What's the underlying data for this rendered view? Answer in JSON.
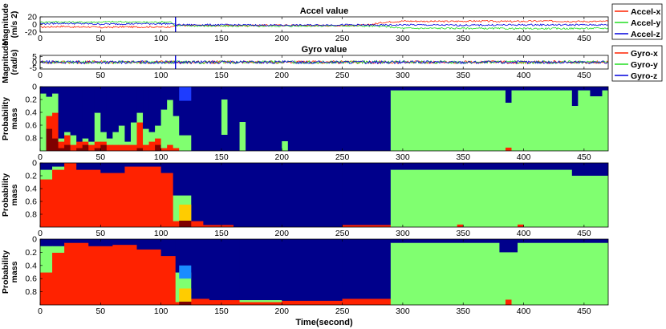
{
  "colors": {
    "red": "#ff2200",
    "green": "#80ff70",
    "navy": "#00008b",
    "darkred": "#7f0000",
    "blue": "#1e3cff",
    "lightblue": "#1a8cff",
    "yellow": "#ffcc00",
    "grey": "#9a9a9a",
    "black": "#000000"
  },
  "chart_data": [
    {
      "id": "accel",
      "type": "line",
      "title": "Accel value",
      "ylabel_lines": [
        "Magnitude",
        "(m/s 2)"
      ],
      "xlim": [
        0,
        470
      ],
      "ylim": [
        -20,
        20
      ],
      "yticks": [
        20,
        0,
        -20
      ],
      "ytick_labels": [
        "20",
        "0",
        "-20"
      ],
      "xticks": [
        0,
        50,
        100,
        150,
        200,
        250,
        300,
        350,
        400,
        450
      ],
      "legend": {
        "position": "right",
        "entries": [
          "Accel-x",
          "Accel-y",
          "Accel-z"
        ],
        "colors": [
          "#ff2200",
          "#22dd22",
          "#0000dd"
        ]
      },
      "series": [
        {
          "name": "Accel-x",
          "segments": [
            {
              "x": [
                0,
                2,
                10,
                20,
                30,
                40,
                50,
                60,
                70,
                80,
                90,
                100,
                108
              ],
              "y": [
                -6,
                -7,
                -6,
                -5,
                -7,
                -6,
                -8,
                -7,
                -6,
                -7,
                -6,
                -7,
                -6
              ]
            },
            {
              "x": [
                112,
                130,
                160,
                200,
                240,
                270,
                285,
                300,
                330,
                360,
                390,
                420,
                450,
                470
              ],
              "y": [
                -2,
                -3,
                -3,
                -2,
                -3,
                -2,
                6,
                9,
                8,
                9,
                8,
                9,
                8,
                8
              ]
            }
          ]
        },
        {
          "name": "Accel-y",
          "segments": [
            {
              "x": [
                0,
                10,
                30,
                60,
                90,
                108
              ],
              "y": [
                6,
                7,
                6,
                7,
                6,
                7
              ]
            },
            {
              "x": [
                112,
                150,
                200,
                250,
                285,
                300,
                350,
                400,
                470
              ],
              "y": [
                -3,
                -4,
                -4,
                -3,
                -5,
                -10,
                -10,
                -11,
                -10
              ]
            }
          ]
        },
        {
          "name": "Accel-z",
          "segments": [
            {
              "x": [
                0,
                20,
                50,
                80,
                108
              ],
              "y": [
                2,
                3,
                1,
                2,
                2
              ]
            },
            {
              "x": [
                112,
                150,
                200,
                250,
                285,
                300,
                350,
                400,
                470
              ],
              "y": [
                -1,
                -1,
                -2,
                -1,
                -2,
                -1,
                -2,
                -1,
                -1
              ]
            }
          ]
        }
      ],
      "spike_x": 112
    },
    {
      "id": "gyro",
      "type": "line",
      "title": "Gyro value",
      "ylabel_lines": [
        "Magnitude",
        "(rad/s)"
      ],
      "xlim": [
        0,
        470
      ],
      "ylim": [
        -6,
        6
      ],
      "yticks": [
        5,
        0,
        -5
      ],
      "ytick_labels": [
        "5",
        "0",
        "-5"
      ],
      "xticks": [
        0,
        50,
        100,
        150,
        200,
        250,
        300,
        350,
        400,
        450
      ],
      "legend": {
        "position": "right",
        "entries": [
          "Gyro-x",
          "Gyro-y",
          "Gyro-z"
        ],
        "colors": [
          "#ff2200",
          "#22dd22",
          "#0000dd"
        ]
      },
      "series": [
        {
          "name": "Gyro-x",
          "x": [
            0,
            470
          ],
          "y": [
            0,
            0
          ]
        },
        {
          "name": "Gyro-y",
          "x": [
            0,
            470
          ],
          "y": [
            0,
            0
          ]
        },
        {
          "name": "Gyro-z",
          "x": [
            0,
            470
          ],
          "y": [
            0,
            0
          ]
        }
      ],
      "spike_x": 112
    },
    {
      "id": "prob1",
      "type": "area",
      "stacked": true,
      "ylabel_lines": [
        "Probability",
        "mass"
      ],
      "xlim": [
        0,
        470
      ],
      "ylim": [
        1,
        0
      ],
      "yticks": [
        0,
        0.2,
        0.4,
        0.6,
        0.8
      ],
      "ytick_labels": [
        "0",
        "0.2",
        "0.4",
        "0.6",
        "0.8"
      ],
      "xticks": [
        0,
        50,
        100,
        150,
        200,
        250,
        300,
        350,
        400,
        450
      ],
      "xtick_labels": [
        "0",
        "50",
        "100",
        "150",
        "200",
        "250",
        "300",
        "350",
        "400",
        "450"
      ],
      "layer_order": [
        "darkred",
        "red",
        "green",
        "navy"
      ],
      "segments": [
        {
          "x0": 0,
          "x1": 5,
          "darkred": 0,
          "red": 0,
          "green": 0.9,
          "navy": 0.1
        },
        {
          "x0": 5,
          "x1": 10,
          "darkred": 0.35,
          "red": 0.2,
          "green": 0.3,
          "navy": 0.15
        },
        {
          "x0": 10,
          "x1": 15,
          "darkred": 0.2,
          "red": 0.4,
          "green": 0.3,
          "navy": 0.1
        },
        {
          "x0": 15,
          "x1": 20,
          "darkred": 0.05,
          "red": 0.1,
          "green": 0.05,
          "navy": 0.8
        },
        {
          "x0": 20,
          "x1": 25,
          "darkred": 0.1,
          "red": 0.15,
          "green": 0.05,
          "navy": 0.7
        },
        {
          "x0": 25,
          "x1": 30,
          "darkred": 0,
          "red": 0.1,
          "green": 0.15,
          "navy": 0.75
        },
        {
          "x0": 30,
          "x1": 35,
          "darkred": 0.05,
          "red": 0.1,
          "green": 0,
          "navy": 0.85
        },
        {
          "x0": 35,
          "x1": 40,
          "darkred": 0.1,
          "red": 0.05,
          "green": 0.05,
          "navy": 0.8
        },
        {
          "x0": 40,
          "x1": 45,
          "darkred": 0,
          "red": 0.1,
          "green": 0.05,
          "navy": 0.85
        },
        {
          "x0": 45,
          "x1": 50,
          "darkred": 0.05,
          "red": 0.1,
          "green": 0.45,
          "navy": 0.4
        },
        {
          "x0": 50,
          "x1": 55,
          "darkred": 0.1,
          "red": 0.05,
          "green": 0.15,
          "navy": 0.7
        },
        {
          "x0": 55,
          "x1": 60,
          "darkred": 0,
          "red": 0.1,
          "green": 0.1,
          "navy": 0.8
        },
        {
          "x0": 60,
          "x1": 65,
          "darkred": 0,
          "red": 0.1,
          "green": 0.2,
          "navy": 0.7
        },
        {
          "x0": 65,
          "x1": 70,
          "darkred": 0,
          "red": 0.1,
          "green": 0.3,
          "navy": 0.6
        },
        {
          "x0": 70,
          "x1": 75,
          "darkred": 0,
          "red": 0.1,
          "green": 0.05,
          "navy": 0.85
        },
        {
          "x0": 75,
          "x1": 80,
          "darkred": 0,
          "red": 0.1,
          "green": 0.35,
          "navy": 0.55
        },
        {
          "x0": 80,
          "x1": 85,
          "darkred": 0.05,
          "red": 0.4,
          "green": 0.15,
          "navy": 0.4
        },
        {
          "x0": 85,
          "x1": 90,
          "darkred": 0,
          "red": 0.1,
          "green": 0.25,
          "navy": 0.65
        },
        {
          "x0": 90,
          "x1": 95,
          "darkred": 0,
          "red": 0.15,
          "green": 0.15,
          "navy": 0.7
        },
        {
          "x0": 95,
          "x1": 100,
          "darkred": 0.1,
          "red": 0.1,
          "green": 0.2,
          "navy": 0.6
        },
        {
          "x0": 100,
          "x1": 105,
          "darkred": 0,
          "red": 0.05,
          "green": 0.6,
          "navy": 0.35
        },
        {
          "x0": 105,
          "x1": 110,
          "darkred": 0,
          "red": 0.1,
          "green": 0.7,
          "navy": 0.2
        },
        {
          "x0": 110,
          "x1": 115,
          "darkred": 0,
          "red": 0.05,
          "green": 0.5,
          "navy": 0.45
        },
        {
          "x0": 115,
          "x1": 125,
          "darkred": 0,
          "red": 0,
          "green": 0.25,
          "navy": 0.75
        },
        {
          "x0": 125,
          "x1": 290,
          "darkred": 0,
          "red": 0,
          "green": 0,
          "navy": 1
        },
        {
          "x0": 290,
          "x1": 470,
          "darkred": 0,
          "red": 0,
          "green": 0.95,
          "navy": 0.05
        }
      ],
      "overlays": [
        {
          "x0": 115,
          "x1": 125,
          "y0": 0,
          "y1": 0.22,
          "color": "blue"
        },
        {
          "x0": 150,
          "x1": 155,
          "y0": 0.2,
          "y1": 0.75,
          "color": "green"
        },
        {
          "x0": 165,
          "x1": 170,
          "y0": 0.55,
          "y1": 1,
          "color": "green"
        },
        {
          "x0": 200,
          "x1": 205,
          "y0": 0.85,
          "y1": 1,
          "color": "green"
        },
        {
          "x0": 385,
          "x1": 390,
          "y0": 0,
          "y1": 0.25,
          "color": "navy"
        },
        {
          "x0": 440,
          "x1": 445,
          "y0": 0,
          "y1": 0.3,
          "color": "navy"
        },
        {
          "x0": 455,
          "x1": 465,
          "y0": 0,
          "y1": 0.15,
          "color": "navy"
        },
        {
          "x0": 385,
          "x1": 390,
          "y0": 0.95,
          "y1": 1,
          "color": "red"
        }
      ]
    },
    {
      "id": "prob2",
      "type": "area",
      "stacked": true,
      "ylabel_lines": [
        "Probability",
        "mass"
      ],
      "xlim": [
        0,
        470
      ],
      "ylim": [
        1,
        0
      ],
      "yticks": [
        0,
        0.2,
        0.4,
        0.6,
        0.8
      ],
      "ytick_labels": [
        "0",
        "0.2",
        "0.4",
        "0.6",
        "0.8"
      ],
      "xticks": [
        0,
        50,
        100,
        150,
        200,
        250,
        300,
        350,
        400,
        450
      ],
      "xtick_labels": [
        "0",
        "50",
        "100",
        "150",
        "200",
        "250",
        "300",
        "350",
        "400",
        "450"
      ],
      "layer_order": [
        "red",
        "green",
        "navy"
      ],
      "segments": [
        {
          "x0": 0,
          "x1": 10,
          "red": 0.75,
          "green": 0.15,
          "navy": 0.1
        },
        {
          "x0": 10,
          "x1": 20,
          "red": 0.9,
          "green": 0.05,
          "navy": 0.05
        },
        {
          "x0": 20,
          "x1": 30,
          "red": 1,
          "green": 0,
          "navy": 0
        },
        {
          "x0": 30,
          "x1": 50,
          "red": 0.9,
          "green": 0,
          "navy": 0.1
        },
        {
          "x0": 50,
          "x1": 70,
          "red": 0.85,
          "green": 0,
          "navy": 0.15
        },
        {
          "x0": 70,
          "x1": 100,
          "red": 0.95,
          "green": 0,
          "navy": 0.05
        },
        {
          "x0": 100,
          "x1": 110,
          "red": 0.85,
          "green": 0,
          "navy": 0.15
        },
        {
          "x0": 110,
          "x1": 125,
          "red": 0.1,
          "green": 0.4,
          "navy": 0.5
        },
        {
          "x0": 125,
          "x1": 135,
          "red": 0.1,
          "green": 0,
          "navy": 0.9
        },
        {
          "x0": 135,
          "x1": 160,
          "red": 0.04,
          "green": 0,
          "navy": 0.96
        },
        {
          "x0": 160,
          "x1": 250,
          "red": 0,
          "green": 0,
          "navy": 1
        },
        {
          "x0": 250,
          "x1": 290,
          "red": 0.04,
          "green": 0,
          "navy": 0.96
        },
        {
          "x0": 290,
          "x1": 470,
          "red": 0,
          "green": 0.9,
          "navy": 0.1
        }
      ],
      "overlays": [
        {
          "x0": 115,
          "x1": 125,
          "y0": 0.65,
          "y1": 0.9,
          "color": "yellow"
        },
        {
          "x0": 115,
          "x1": 125,
          "y0": 0.9,
          "y1": 1,
          "color": "darkred"
        },
        {
          "x0": 380,
          "x1": 395,
          "y0": 0,
          "y1": 0.1,
          "color": "navy"
        },
        {
          "x0": 440,
          "x1": 470,
          "y0": 0,
          "y1": 0.2,
          "color": "navy"
        },
        {
          "x0": 395,
          "x1": 400,
          "y0": 0.96,
          "y1": 1,
          "color": "red"
        },
        {
          "x0": 345,
          "x1": 350,
          "y0": 0.96,
          "y1": 1,
          "color": "red"
        }
      ]
    },
    {
      "id": "prob3",
      "type": "area",
      "stacked": true,
      "ylabel_lines": [
        "Probability",
        "mass"
      ],
      "xlim": [
        0,
        470
      ],
      "ylim": [
        1,
        0
      ],
      "yticks": [
        0,
        0.2,
        0.4,
        0.6,
        0.8
      ],
      "ytick_labels": [
        "0",
        "0.2",
        "0.4",
        "0.6",
        "0.8"
      ],
      "xticks": [
        0,
        50,
        100,
        150,
        200,
        250,
        300,
        350,
        400,
        450
      ],
      "xtick_labels": [
        "0",
        "50",
        "100",
        "150",
        "200",
        "250",
        "300",
        "350",
        "400",
        "450"
      ],
      "xlabel": "Time(second)",
      "layer_order": [
        "red",
        "green",
        "navy"
      ],
      "segments": [
        {
          "x0": 0,
          "x1": 10,
          "red": 0.5,
          "green": 0.4,
          "navy": 0.1
        },
        {
          "x0": 10,
          "x1": 20,
          "red": 0.8,
          "green": 0.1,
          "navy": 0.1
        },
        {
          "x0": 20,
          "x1": 40,
          "red": 0.95,
          "green": 0,
          "navy": 0.05
        },
        {
          "x0": 40,
          "x1": 60,
          "red": 0.9,
          "green": 0,
          "navy": 0.1
        },
        {
          "x0": 60,
          "x1": 80,
          "red": 0.92,
          "green": 0,
          "navy": 0.08
        },
        {
          "x0": 80,
          "x1": 100,
          "red": 0.85,
          "green": 0,
          "navy": 0.15
        },
        {
          "x0": 100,
          "x1": 112,
          "red": 0.75,
          "green": 0,
          "navy": 0.25
        },
        {
          "x0": 112,
          "x1": 125,
          "red": 0.05,
          "green": 0.45,
          "navy": 0.5
        },
        {
          "x0": 125,
          "x1": 140,
          "red": 0.1,
          "green": 0,
          "navy": 0.9
        },
        {
          "x0": 140,
          "x1": 165,
          "red": 0.08,
          "green": 0,
          "navy": 0.92
        },
        {
          "x0": 165,
          "x1": 200,
          "red": 0.05,
          "green": 0.03,
          "navy": 0.92
        },
        {
          "x0": 200,
          "x1": 250,
          "red": 0.07,
          "green": 0,
          "navy": 0.93
        },
        {
          "x0": 250,
          "x1": 290,
          "red": 0.1,
          "green": 0,
          "navy": 0.9
        },
        {
          "x0": 290,
          "x1": 470,
          "red": 0,
          "green": 0.95,
          "navy": 0.05
        }
      ],
      "overlays": [
        {
          "x0": 115,
          "x1": 125,
          "y0": 0.4,
          "y1": 0.6,
          "color": "lightblue"
        },
        {
          "x0": 115,
          "x1": 125,
          "y0": 0.75,
          "y1": 0.95,
          "color": "yellow"
        },
        {
          "x0": 115,
          "x1": 125,
          "y0": 0.95,
          "y1": 1,
          "color": "darkred"
        },
        {
          "x0": 380,
          "x1": 395,
          "y0": 0,
          "y1": 0.2,
          "color": "navy"
        },
        {
          "x0": 385,
          "x1": 390,
          "y0": 0.92,
          "y1": 1,
          "color": "red"
        },
        {
          "x0": 440,
          "x1": 445,
          "y0": 0,
          "y1": 0.05,
          "color": "navy"
        }
      ]
    }
  ]
}
